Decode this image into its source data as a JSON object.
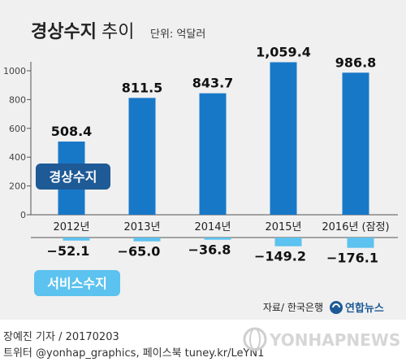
{
  "chart_data": {
    "type": "bar",
    "title": "경상수지",
    "title_suffix": "추이",
    "unit": "단위: 억달러",
    "categories": [
      "2012년",
      "2013년",
      "2014년",
      "2015년",
      "2016년 (잠정)"
    ],
    "series": [
      {
        "name": "경상수지",
        "values": [
          508.4,
          811.5,
          843.7,
          1059.4,
          986.8
        ],
        "value_labels": [
          "508.4",
          "811.5",
          "843.7",
          "1,059.4",
          "986.8"
        ],
        "color": "#1878c8"
      },
      {
        "name": "서비스수지",
        "values": [
          -52.1,
          -65.0,
          -36.8,
          -149.2,
          -176.1
        ],
        "value_labels": [
          "−52.1",
          "−65.0",
          "−36.8",
          "−149.2",
          "−176.1"
        ],
        "color": "#5cc2ef"
      }
    ],
    "yticks": [
      0,
      200,
      400,
      600,
      800,
      1000
    ],
    "ylim": [
      0,
      1100
    ],
    "grid": false
  },
  "source": "자료/ 한국은행",
  "logo": "연합뉴스",
  "watermark": "YONHAPNEWS",
  "credits": {
    "line1": "장예진 기자 / 20170203",
    "line2": "트위터 @yonhap_graphics, 페이스북 tuney.kr/LeYN1"
  },
  "colors": {
    "background": "#f0f0f0",
    "current_account": "#1878c8",
    "service": "#5cc2ef",
    "label_box_dark": "#1e5a96"
  }
}
